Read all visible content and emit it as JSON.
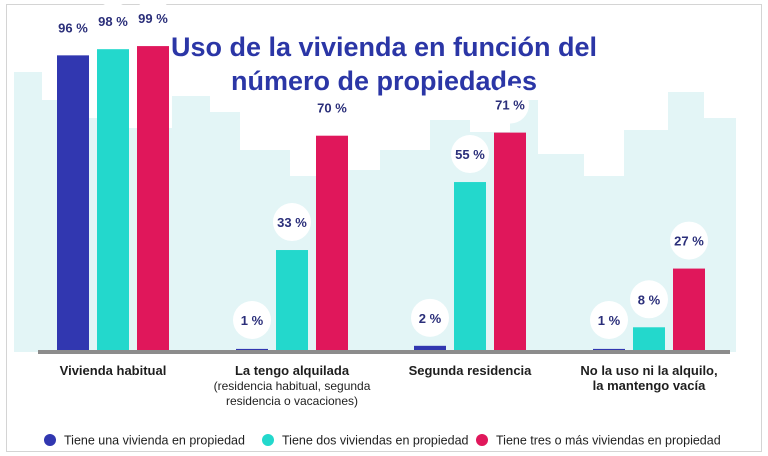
{
  "colors": {
    "background_skyline": "#e3f5f6",
    "axis": "#8c8c8c",
    "bubble": "#ffffff",
    "value_text": "#2b2f7a",
    "title": "#2b36a6"
  },
  "chart_data": {
    "type": "bar",
    "title": [
      "Uso de la vivienda en función del",
      "número de propiedades"
    ],
    "ylim": [
      0,
      100
    ],
    "value_suffix": " %",
    "categories": [
      {
        "label": "Vivienda habitual",
        "sublabel": []
      },
      {
        "label": "La tengo alquilada",
        "sublabel": [
          "(residencia habitual, segunda",
          "residencia o vacaciones)"
        ]
      },
      {
        "label": "Segunda residencia",
        "sublabel": []
      },
      {
        "label": [
          "No la uso ni la alquilo,",
          "la mantengo vacía"
        ],
        "sublabel": []
      }
    ],
    "series": [
      {
        "name": "Tiene una vivienda en propiedad",
        "color": "#3137b0",
        "values": [
          96,
          1,
          2,
          1
        ]
      },
      {
        "name": "Tiene dos viviendas en propiedad",
        "color": "#23d8cc",
        "values": [
          98,
          33,
          55,
          8
        ]
      },
      {
        "name": "Tiene tres o más viviendas en propiedad",
        "color": "#e0175b",
        "values": [
          99,
          70,
          71,
          27
        ]
      }
    ],
    "legend_position": "bottom"
  }
}
